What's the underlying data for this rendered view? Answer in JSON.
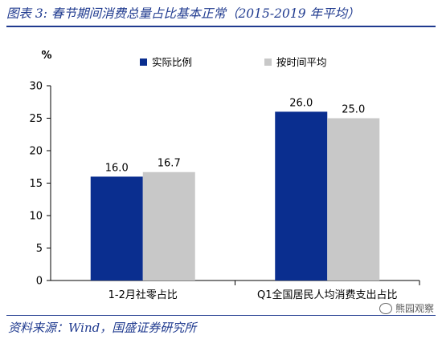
{
  "title": "图表 3:  春节期间消费总量占比基本正常（2015-2019 年平均）",
  "source": "资料来源：Wind，国盛证券研究所",
  "watermark": "熊园观察",
  "chart_data": {
    "type": "bar",
    "ylabel": "%",
    "ylim": [
      0,
      30
    ],
    "yticks": [
      0,
      5,
      10,
      15,
      20,
      25,
      30
    ],
    "categories": [
      "1-2月社零占比",
      "Q1全国居民人均消费支出占比"
    ],
    "series": [
      {
        "name": "实际比例",
        "color": "#0a2e8f",
        "values": [
          16.0,
          26.0
        ],
        "labels": [
          "16.0",
          "26.0"
        ]
      },
      {
        "name": "按时间平均",
        "color": "#c8c8c8",
        "values": [
          16.7,
          25.0
        ],
        "labels": [
          "16.7",
          "25.0"
        ]
      }
    ],
    "legend_position": "top-center",
    "grid": false
  }
}
